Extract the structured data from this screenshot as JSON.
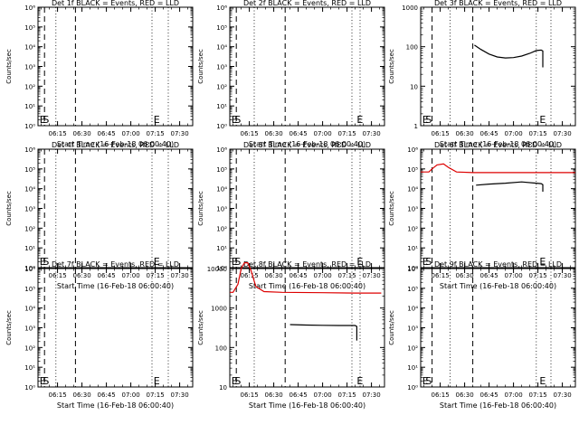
{
  "colors": {
    "events": "#000000",
    "lld": "#dd0000",
    "axis": "#000000",
    "background": "#ffffff"
  },
  "chart_data": [
    {
      "type": "line",
      "title": "Det 1f BLACK = Events, RED = LLD",
      "xlabel": "Start Time (16-Feb-18 06:00:40)",
      "ylabel": "Counts/sec",
      "x_range": [
        "06:03",
        "07:38"
      ],
      "x_ticks": [
        "06:15",
        "06:30",
        "06:45",
        "07:00",
        "07:15",
        "07:30"
      ],
      "y_scale": "log",
      "y_range": [
        1,
        1000000
      ],
      "y_ticks": [
        "10⁰",
        "10¹",
        "10²",
        "10³",
        "10⁴",
        "10⁵",
        "10⁶"
      ],
      "markers": [
        {
          "label": "E",
          "time": "06:04"
        },
        {
          "label": "S",
          "time": "06:06"
        },
        {
          "label": "E",
          "time": "07:14"
        }
      ],
      "dashed_lines": [
        "06:07",
        "06:26"
      ],
      "dotted_lines": [
        "06:14",
        "07:13",
        "07:23"
      ],
      "series": []
    },
    {
      "type": "line",
      "title": "Det 2f BLACK = Events, RED = LLD",
      "xlabel": "Start Time (16-Feb-18 06:00:40)",
      "ylabel": "Counts/sec",
      "x_range": [
        "06:03",
        "07:38"
      ],
      "x_ticks": [
        "06:15",
        "06:30",
        "06:45",
        "07:00",
        "07:15",
        "07:30"
      ],
      "y_scale": "log",
      "y_range": [
        1,
        1000000
      ],
      "y_ticks": [
        "10⁰",
        "10¹",
        "10²",
        "10³",
        "10⁴",
        "10⁵",
        "10⁶"
      ],
      "markers": [
        {
          "label": "E",
          "time": "06:04"
        },
        {
          "label": "S",
          "time": "06:06"
        },
        {
          "label": "E",
          "time": "07:21"
        }
      ],
      "dashed_lines": [
        "06:07",
        "06:37"
      ],
      "dotted_lines": [
        "06:18",
        "07:18",
        "07:23"
      ],
      "series": []
    },
    {
      "type": "line",
      "title": "Det 3f BLACK = Events, RED = LLD",
      "xlabel": "Start Time (16-Feb-18 06:00:40)",
      "ylabel": "Counts/sec",
      "x_range": [
        "06:03",
        "07:38"
      ],
      "x_ticks": [
        "06:15",
        "06:30",
        "06:45",
        "07:00",
        "07:15",
        "07:30"
      ],
      "y_scale": "log",
      "y_range": [
        1,
        1000
      ],
      "y_ticks": [
        "1",
        "10",
        "100",
        "1000"
      ],
      "markers": [
        {
          "label": "E",
          "time": "06:04"
        },
        {
          "label": "S",
          "time": "06:06"
        },
        {
          "label": "E",
          "time": "07:16"
        }
      ],
      "dashed_lines": [
        "06:10",
        "06:35"
      ],
      "dotted_lines": [
        "06:21",
        "07:14",
        "07:23"
      ],
      "series": [
        {
          "name": "Events",
          "color": "events",
          "x": [
            "06:36",
            "06:40",
            "06:45",
            "06:50",
            "06:55",
            "07:00",
            "07:05",
            "07:10",
            "07:14",
            "07:17",
            "07:18",
            "07:18"
          ],
          "y": [
            110,
            85,
            65,
            55,
            52,
            53,
            58,
            68,
            80,
            82,
            78,
            30
          ]
        }
      ]
    },
    {
      "type": "line",
      "title": "Det 4f BLACK = Events, RED = LLD",
      "xlabel": "Start Time (16-Feb-18 06:00:40)",
      "ylabel": "Counts/sec",
      "x_range": [
        "06:03",
        "07:38"
      ],
      "x_ticks": [
        "06:15",
        "06:30",
        "06:45",
        "07:00",
        "07:15",
        "07:30"
      ],
      "y_scale": "log",
      "y_range": [
        1,
        1000000
      ],
      "y_ticks": [
        "10⁰",
        "10¹",
        "10²",
        "10³",
        "10⁴",
        "10⁵",
        "10⁶"
      ],
      "markers": [
        {
          "label": "E",
          "time": "06:04"
        },
        {
          "label": "S",
          "time": "06:06"
        },
        {
          "label": "E",
          "time": "07:14"
        }
      ],
      "dashed_lines": [
        "06:07",
        "06:26"
      ],
      "dotted_lines": [
        "06:14",
        "07:13",
        "07:23"
      ],
      "series": []
    },
    {
      "type": "line",
      "title": "Det 5f BLACK = Events, RED = LLD",
      "xlabel": "Start Time (16-Feb-18 06:00:40)",
      "ylabel": "Counts/sec",
      "x_range": [
        "06:03",
        "07:38"
      ],
      "x_ticks": [
        "06:15",
        "06:30",
        "06:45",
        "07:00",
        "07:15",
        "07:30"
      ],
      "y_scale": "log",
      "y_range": [
        1,
        1000000
      ],
      "y_ticks": [
        "10⁰",
        "10¹",
        "10²",
        "10³",
        "10⁴",
        "10⁵",
        "10⁶"
      ],
      "markers": [
        {
          "label": "E",
          "time": "06:04"
        },
        {
          "label": "S",
          "time": "06:06"
        },
        {
          "label": "E",
          "time": "07:21"
        }
      ],
      "dashed_lines": [
        "06:07",
        "06:37"
      ],
      "dotted_lines": [
        "06:18",
        "07:18",
        "07:23"
      ],
      "series": []
    },
    {
      "type": "line",
      "title": "Det 6f BLACK = Events, RED = LLD",
      "xlabel": "Start Time (16-Feb-18 06:00:40)",
      "ylabel": "Counts/sec",
      "x_range": [
        "06:03",
        "07:38"
      ],
      "x_ticks": [
        "06:15",
        "06:30",
        "06:45",
        "07:00",
        "07:15",
        "07:30"
      ],
      "y_scale": "log",
      "y_range": [
        1,
        1000000
      ],
      "y_ticks": [
        "10⁰",
        "10¹",
        "10²",
        "10³",
        "10⁴",
        "10⁵",
        "10⁶"
      ],
      "markers": [
        {
          "label": "E",
          "time": "06:04"
        },
        {
          "label": "S",
          "time": "06:06"
        },
        {
          "label": "E",
          "time": "07:16"
        }
      ],
      "dashed_lines": [
        "06:10",
        "06:35"
      ],
      "dotted_lines": [
        "06:21",
        "07:14",
        "07:23"
      ],
      "series": [
        {
          "name": "LLD",
          "color": "lld",
          "x": [
            "06:03",
            "06:08",
            "06:10",
            "06:13",
            "06:17",
            "06:20",
            "06:25",
            "06:35",
            "07:00",
            "07:20",
            "07:38"
          ],
          "y": [
            70000,
            70000,
            100000,
            160000,
            180000,
            120000,
            70000,
            65000,
            65000,
            65000,
            65000
          ]
        },
        {
          "name": "Events",
          "color": "events",
          "x": [
            "06:37",
            "06:45",
            "06:55",
            "07:05",
            "07:14",
            "07:17",
            "07:18",
            "07:18"
          ],
          "y": [
            15000,
            17000,
            19000,
            22000,
            19000,
            18000,
            16000,
            7000
          ]
        }
      ]
    },
    {
      "type": "line",
      "title": "Det 7f BLACK = Events, RED = LLD",
      "xlabel": "Start Time (16-Feb-18 06:00:40)",
      "ylabel": "Counts/sec",
      "x_range": [
        "06:03",
        "07:38"
      ],
      "x_ticks": [
        "06:15",
        "06:30",
        "06:45",
        "07:00",
        "07:15",
        "07:30"
      ],
      "y_scale": "log",
      "y_range": [
        1,
        1000000
      ],
      "y_ticks": [
        "10⁰",
        "10¹",
        "10²",
        "10³",
        "10⁴",
        "10⁵",
        "10⁶"
      ],
      "markers": [
        {
          "label": "E",
          "time": "06:04"
        },
        {
          "label": "S",
          "time": "06:06"
        },
        {
          "label": "E",
          "time": "07:14"
        }
      ],
      "dashed_lines": [
        "06:07",
        "06:26"
      ],
      "dotted_lines": [
        "06:14",
        "07:13",
        "07:23"
      ],
      "series": []
    },
    {
      "type": "line",
      "title": "Det 8f BLACK = Events, RED = LLD",
      "xlabel": "Start Time (16-Feb-18 06:00:40)",
      "ylabel": "Counts/sec",
      "x_range": [
        "06:03",
        "07:38"
      ],
      "x_ticks": [
        "06:15",
        "06:30",
        "06:45",
        "07:00",
        "07:15",
        "07:30"
      ],
      "y_scale": "log",
      "y_range": [
        10,
        10000
      ],
      "y_ticks": [
        "10",
        "100",
        "1000",
        "10000"
      ],
      "markers": [
        {
          "label": "E",
          "time": "06:04"
        },
        {
          "label": "S",
          "time": "06:06"
        },
        {
          "label": "E",
          "time": "07:21"
        }
      ],
      "dashed_lines": [
        "06:07",
        "06:37"
      ],
      "dotted_lines": [
        "06:18",
        "07:18",
        "07:23"
      ],
      "series": [
        {
          "name": "LLD",
          "color": "lld",
          "x": [
            "06:03",
            "06:05",
            "06:08",
            "06:10",
            "06:12",
            "06:14",
            "06:16",
            "06:19",
            "06:24",
            "06:35",
            "07:00",
            "07:20",
            "07:36"
          ],
          "y": [
            2500,
            2500,
            4000,
            10000,
            14000,
            14000,
            9000,
            3500,
            2600,
            2500,
            2450,
            2400,
            2400
          ]
        },
        {
          "name": "Events",
          "color": "events",
          "x": [
            "06:40",
            "06:50",
            "07:00",
            "07:10",
            "07:18",
            "07:20",
            "07:21",
            "07:21"
          ],
          "y": [
            380,
            370,
            365,
            360,
            360,
            360,
            340,
            150
          ]
        }
      ]
    },
    {
      "type": "line",
      "title": "Det 9f BLACK = Events, RED = LLD",
      "xlabel": "Start Time (16-Feb-18 06:00:40)",
      "ylabel": "Counts/sec",
      "x_range": [
        "06:03",
        "07:38"
      ],
      "x_ticks": [
        "06:15",
        "06:30",
        "06:45",
        "07:00",
        "07:15",
        "07:30"
      ],
      "y_scale": "log",
      "y_range": [
        1,
        1000000
      ],
      "y_ticks": [
        "10⁰",
        "10¹",
        "10²",
        "10³",
        "10⁴",
        "10⁵",
        "10⁶"
      ],
      "markers": [
        {
          "label": "E",
          "time": "06:04"
        },
        {
          "label": "S",
          "time": "06:06"
        },
        {
          "label": "E",
          "time": "07:16"
        }
      ],
      "dashed_lines": [
        "06:10",
        "06:35"
      ],
      "dotted_lines": [
        "06:21",
        "07:14",
        "07:23"
      ],
      "series": []
    }
  ]
}
